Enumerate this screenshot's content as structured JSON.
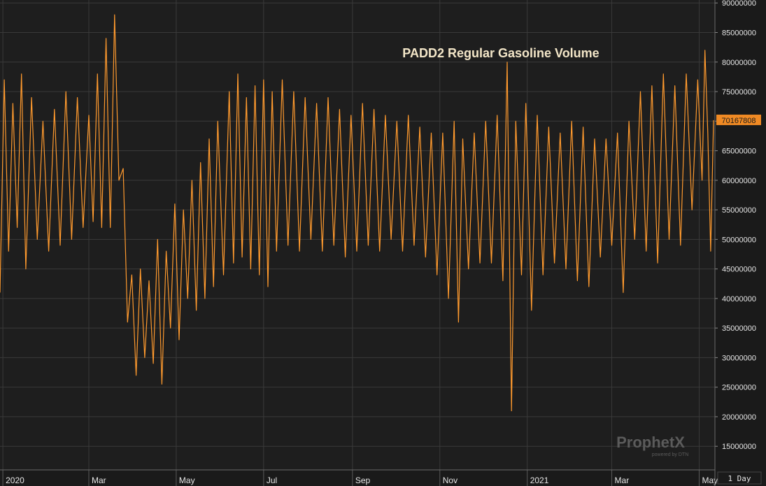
{
  "chart_data": {
    "type": "line",
    "title": "PADD2 Regular Gasoline Volume",
    "y_ticks": [
      "90000000",
      "85000000",
      "80000000",
      "75000000",
      "70000000",
      "65000000",
      "60000000",
      "55000000",
      "50000000",
      "45000000",
      "40000000",
      "35000000",
      "30000000",
      "25000000",
      "20000000",
      "15000000"
    ],
    "ylim": [
      11000000,
      90500000
    ],
    "x_ticks": [
      {
        "label": "2020",
        "date": "2020-01-01"
      },
      {
        "label": "Mar",
        "date": "2020-03-01"
      },
      {
        "label": "May",
        "date": "2020-05-01"
      },
      {
        "label": "Jul",
        "date": "2020-07-01"
      },
      {
        "label": "Sep",
        "date": "2020-09-01"
      },
      {
        "label": "Nov",
        "date": "2020-11-01"
      },
      {
        "label": "2021",
        "date": "2021-01-01"
      },
      {
        "label": "Mar",
        "date": "2021-03-01"
      },
      {
        "label": "May",
        "date": "2021-05-01"
      }
    ],
    "xlim": [
      "2019-12-30",
      "2021-05-12"
    ],
    "last_value": "70167808",
    "period_label": "1 Day",
    "grid": true,
    "line_color": "#ff9a2e",
    "series": [
      {
        "name": "",
        "points": [
          [
            "2019-12-30",
            41000000
          ],
          [
            "2020-01-02",
            77000000
          ],
          [
            "2020-01-05",
            48000000
          ],
          [
            "2020-01-08",
            73000000
          ],
          [
            "2020-01-11",
            52000000
          ],
          [
            "2020-01-14",
            78000000
          ],
          [
            "2020-01-17",
            45000000
          ],
          [
            "2020-01-21",
            74000000
          ],
          [
            "2020-01-25",
            50000000
          ],
          [
            "2020-01-29",
            70000000
          ],
          [
            "2020-02-02",
            48000000
          ],
          [
            "2020-02-06",
            72000000
          ],
          [
            "2020-02-10",
            49000000
          ],
          [
            "2020-02-14",
            75000000
          ],
          [
            "2020-02-18",
            50000000
          ],
          [
            "2020-02-22",
            74000000
          ],
          [
            "2020-02-26",
            52000000
          ],
          [
            "2020-03-01",
            71000000
          ],
          [
            "2020-03-04",
            53000000
          ],
          [
            "2020-03-07",
            78000000
          ],
          [
            "2020-03-10",
            52000000
          ],
          [
            "2020-03-13",
            84000000
          ],
          [
            "2020-03-16",
            52000000
          ],
          [
            "2020-03-19",
            88000000
          ],
          [
            "2020-03-22",
            60000000
          ],
          [
            "2020-03-25",
            62000000
          ],
          [
            "2020-03-28",
            36000000
          ],
          [
            "2020-03-31",
            44000000
          ],
          [
            "2020-04-03",
            27000000
          ],
          [
            "2020-04-06",
            45000000
          ],
          [
            "2020-04-09",
            30000000
          ],
          [
            "2020-04-12",
            43000000
          ],
          [
            "2020-04-15",
            29000000
          ],
          [
            "2020-04-18",
            50000000
          ],
          [
            "2020-04-21",
            25500000
          ],
          [
            "2020-04-24",
            48000000
          ],
          [
            "2020-04-27",
            35000000
          ],
          [
            "2020-04-30",
            56000000
          ],
          [
            "2020-05-03",
            33000000
          ],
          [
            "2020-05-06",
            55000000
          ],
          [
            "2020-05-09",
            40000000
          ],
          [
            "2020-05-12",
            60000000
          ],
          [
            "2020-05-15",
            38000000
          ],
          [
            "2020-05-18",
            63000000
          ],
          [
            "2020-05-21",
            40000000
          ],
          [
            "2020-05-24",
            67000000
          ],
          [
            "2020-05-27",
            42000000
          ],
          [
            "2020-05-30",
            70000000
          ],
          [
            "2020-06-03",
            44000000
          ],
          [
            "2020-06-07",
            75000000
          ],
          [
            "2020-06-10",
            46000000
          ],
          [
            "2020-06-13",
            78000000
          ],
          [
            "2020-06-16",
            47000000
          ],
          [
            "2020-06-19",
            74000000
          ],
          [
            "2020-06-22",
            45000000
          ],
          [
            "2020-06-25",
            76000000
          ],
          [
            "2020-06-28",
            44000000
          ],
          [
            "2020-07-01",
            77000000
          ],
          [
            "2020-07-04",
            42000000
          ],
          [
            "2020-07-07",
            75000000
          ],
          [
            "2020-07-10",
            48000000
          ],
          [
            "2020-07-14",
            77000000
          ],
          [
            "2020-07-18",
            49000000
          ],
          [
            "2020-07-22",
            75000000
          ],
          [
            "2020-07-26",
            48000000
          ],
          [
            "2020-07-30",
            74000000
          ],
          [
            "2020-08-03",
            50000000
          ],
          [
            "2020-08-07",
            73000000
          ],
          [
            "2020-08-11",
            48000000
          ],
          [
            "2020-08-15",
            74000000
          ],
          [
            "2020-08-19",
            49000000
          ],
          [
            "2020-08-23",
            72000000
          ],
          [
            "2020-08-27",
            47000000
          ],
          [
            "2020-08-31",
            71000000
          ],
          [
            "2020-09-04",
            48000000
          ],
          [
            "2020-09-08",
            73000000
          ],
          [
            "2020-09-12",
            49000000
          ],
          [
            "2020-09-16",
            72000000
          ],
          [
            "2020-09-20",
            48000000
          ],
          [
            "2020-09-24",
            71000000
          ],
          [
            "2020-09-28",
            50000000
          ],
          [
            "2020-10-02",
            70000000
          ],
          [
            "2020-10-06",
            48000000
          ],
          [
            "2020-10-10",
            71000000
          ],
          [
            "2020-10-14",
            49000000
          ],
          [
            "2020-10-18",
            69000000
          ],
          [
            "2020-10-22",
            47000000
          ],
          [
            "2020-10-26",
            68000000
          ],
          [
            "2020-10-30",
            44000000
          ],
          [
            "2020-11-03",
            68000000
          ],
          [
            "2020-11-07",
            40000000
          ],
          [
            "2020-11-11",
            70000000
          ],
          [
            "2020-11-14",
            36000000
          ],
          [
            "2020-11-17",
            67000000
          ],
          [
            "2020-11-21",
            45000000
          ],
          [
            "2020-11-25",
            68000000
          ],
          [
            "2020-11-29",
            46000000
          ],
          [
            "2020-12-03",
            70000000
          ],
          [
            "2020-12-07",
            46000000
          ],
          [
            "2020-12-11",
            71000000
          ],
          [
            "2020-12-15",
            43000000
          ],
          [
            "2020-12-18",
            80000000
          ],
          [
            "2020-12-21",
            21000000
          ],
          [
            "2020-12-24",
            70000000
          ],
          [
            "2020-12-28",
            44000000
          ],
          [
            "2020-12-31",
            73000000
          ],
          [
            "2021-01-04",
            38000000
          ],
          [
            "2021-01-08",
            71000000
          ],
          [
            "2021-01-12",
            44000000
          ],
          [
            "2021-01-16",
            69000000
          ],
          [
            "2021-01-20",
            46000000
          ],
          [
            "2021-01-24",
            68000000
          ],
          [
            "2021-01-28",
            45000000
          ],
          [
            "2021-02-01",
            70000000
          ],
          [
            "2021-02-05",
            43000000
          ],
          [
            "2021-02-09",
            69000000
          ],
          [
            "2021-02-13",
            42000000
          ],
          [
            "2021-02-17",
            67000000
          ],
          [
            "2021-02-21",
            47000000
          ],
          [
            "2021-02-25",
            67000000
          ],
          [
            "2021-03-01",
            49000000
          ],
          [
            "2021-03-05",
            68000000
          ],
          [
            "2021-03-09",
            41000000
          ],
          [
            "2021-03-13",
            70000000
          ],
          [
            "2021-03-17",
            50000000
          ],
          [
            "2021-03-21",
            75000000
          ],
          [
            "2021-03-25",
            48000000
          ],
          [
            "2021-03-29",
            76000000
          ],
          [
            "2021-04-02",
            46000000
          ],
          [
            "2021-04-06",
            78000000
          ],
          [
            "2021-04-10",
            50000000
          ],
          [
            "2021-04-14",
            76000000
          ],
          [
            "2021-04-18",
            49000000
          ],
          [
            "2021-04-22",
            78000000
          ],
          [
            "2021-04-26",
            55000000
          ],
          [
            "2021-04-30",
            77000000
          ],
          [
            "2021-05-03",
            60000000
          ],
          [
            "2021-05-05",
            82000000
          ],
          [
            "2021-05-07",
            68000000
          ],
          [
            "2021-05-09",
            48000000
          ],
          [
            "2021-05-11",
            70167808
          ]
        ]
      }
    ]
  },
  "logo": {
    "brand": "ProphetX",
    "tagline": "powered by DTN"
  }
}
